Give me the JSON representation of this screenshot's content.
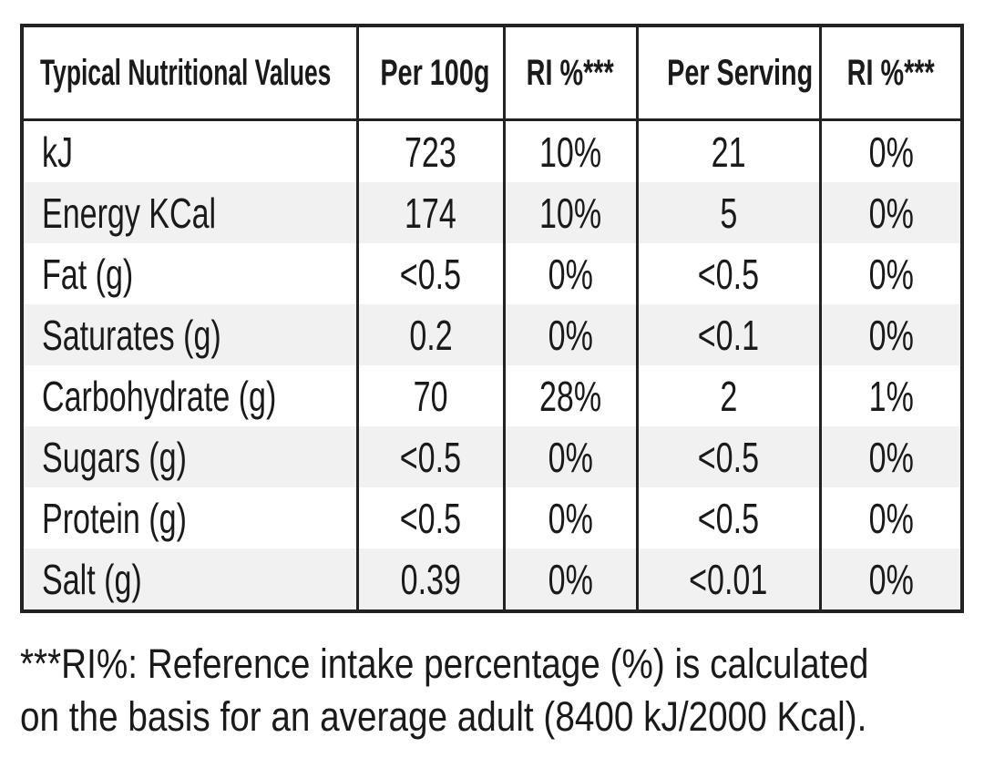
{
  "table": {
    "header": [
      "Typical Nutritional Values",
      "Per 100g",
      "RI %***",
      "Per Serving",
      "RI %***"
    ],
    "rows": [
      [
        "kJ",
        "723",
        "10%",
        "21",
        "0%"
      ],
      [
        "Energy KCal",
        "174",
        "10%",
        "5",
        "0%"
      ],
      [
        "Fat (g)",
        "<0.5",
        "0%",
        "<0.5",
        "0%"
      ],
      [
        "Saturates (g)",
        "0.2",
        "0%",
        "<0.1",
        "0%"
      ],
      [
        "Carbohydrate (g)",
        "70",
        "28%",
        "2",
        "1%"
      ],
      [
        "Sugars (g)",
        "<0.5",
        "0%",
        "<0.5",
        "0%"
      ],
      [
        "Protein (g)",
        "<0.5",
        "0%",
        "<0.5",
        "0%"
      ],
      [
        "Salt (g)",
        "0.39",
        "0%",
        "<0.01",
        "0%"
      ]
    ]
  },
  "footnote": [
    "***RI%: Reference intake percentage (%) is calculated",
    "on the basis for an average adult (8400 kJ/2000 Kcal)."
  ]
}
